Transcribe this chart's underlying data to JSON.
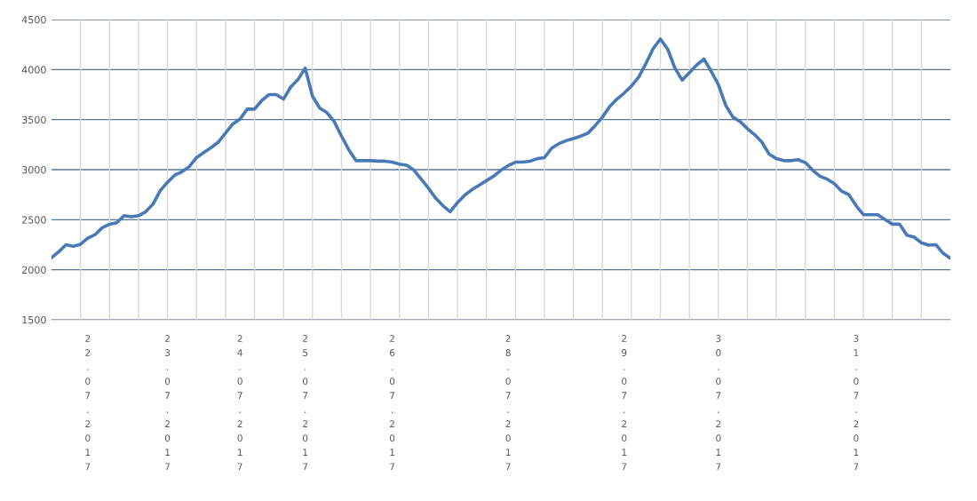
{
  "chart_data": {
    "type": "line",
    "categories": [
      null,
      null,
      null,
      null,
      null,
      "22.07.2017",
      null,
      null,
      null,
      null,
      null,
      null,
      null,
      null,
      null,
      null,
      "23.07.2017",
      null,
      null,
      null,
      null,
      null,
      null,
      null,
      null,
      null,
      "24.07.2017",
      null,
      null,
      null,
      null,
      null,
      null,
      null,
      null,
      "25.07.2017",
      null,
      null,
      null,
      null,
      null,
      null,
      null,
      null,
      null,
      null,
      null,
      "26.07.2017",
      null,
      null,
      null,
      null,
      null,
      null,
      null,
      null,
      null,
      null,
      null,
      null,
      null,
      null,
      null,
      "28.07.2017",
      null,
      null,
      null,
      null,
      null,
      null,
      null,
      null,
      null,
      null,
      null,
      null,
      null,
      null,
      null,
      "29.07.2017",
      null,
      null,
      null,
      null,
      null,
      null,
      null,
      null,
      null,
      null,
      null,
      null,
      "30.07.2017",
      null,
      null,
      null,
      null,
      null,
      null,
      null,
      null,
      null,
      null,
      null,
      null,
      null,
      null,
      null,
      null,
      null,
      null,
      "31.07.2017",
      null,
      null,
      null,
      null,
      null,
      null,
      null,
      null,
      null,
      null,
      null,
      null,
      null
    ],
    "series": [
      {
        "color": "#4a7ab5",
        "values": [
          2120,
          2180,
          2250,
          2235,
          2255,
          2315,
          2350,
          2420,
          2455,
          2470,
          2540,
          2530,
          2540,
          2580,
          2655,
          2790,
          2875,
          2945,
          2980,
          3030,
          3120,
          3170,
          3220,
          3275,
          3365,
          3455,
          3505,
          3605,
          3605,
          3690,
          3750,
          3750,
          3705,
          3825,
          3900,
          4015,
          3735,
          3615,
          3570,
          3480,
          3335,
          3200,
          3090,
          3090,
          3090,
          3085,
          3085,
          3075,
          3055,
          3045,
          2995,
          2905,
          2815,
          2715,
          2640,
          2580,
          2670,
          2745,
          2800,
          2845,
          2890,
          2935,
          2995,
          3040,
          3075,
          3075,
          3085,
          3110,
          3120,
          3215,
          3260,
          3290,
          3310,
          3335,
          3365,
          3440,
          3525,
          3630,
          3705,
          3765,
          3835,
          3925,
          4060,
          4210,
          4305,
          4205,
          4015,
          3895,
          3970,
          4045,
          4105,
          3985,
          3850,
          3645,
          3525,
          3480,
          3410,
          3350,
          3275,
          3155,
          3110,
          3090,
          3090,
          3100,
          3070,
          2995,
          2935,
          2905,
          2860,
          2785,
          2750,
          2640,
          2550,
          2550,
          2550,
          2500,
          2455,
          2455,
          2345,
          2325,
          2270,
          2245,
          2250,
          2165,
          2115
        ]
      }
    ],
    "ylim": [
      1500,
      4500
    ],
    "yticks": [
      1500,
      2000,
      2500,
      3000,
      3500,
      4000,
      4500
    ],
    "grid": true,
    "line_style": "solid",
    "marker": "none",
    "legend": false
  }
}
